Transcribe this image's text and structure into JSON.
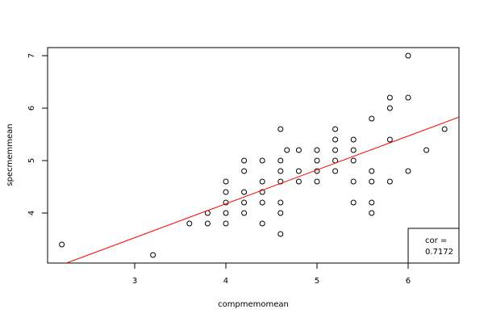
{
  "chart_data": {
    "type": "scatter",
    "x_label": "compmemomean",
    "y_label": "specmemmean",
    "x": [
      2.2,
      3.2,
      3.6,
      3.8,
      3.8,
      4.0,
      4.0,
      4.0,
      4.0,
      4.0,
      4.2,
      4.2,
      4.2,
      4.2,
      4.2,
      4.4,
      4.4,
      4.4,
      4.4,
      4.4,
      4.6,
      4.6,
      4.6,
      4.6,
      4.6,
      4.6,
      4.6,
      4.67,
      4.8,
      4.8,
      4.8,
      5.0,
      5.0,
      5.0,
      5.0,
      5.2,
      5.2,
      5.2,
      5.2,
      5.2,
      5.4,
      5.4,
      5.4,
      5.4,
      5.4,
      5.6,
      5.6,
      5.6,
      5.6,
      5.6,
      5.8,
      5.8,
      5.8,
      5.8,
      6.0,
      6.0,
      6.0,
      6.2,
      6.4
    ],
    "y": [
      3.4,
      3.2,
      3.8,
      3.8,
      4.0,
      3.8,
      4.0,
      4.2,
      4.4,
      4.6,
      4.0,
      4.2,
      4.4,
      4.8,
      5.0,
      3.8,
      4.2,
      4.4,
      4.6,
      5.0,
      3.6,
      4.0,
      4.2,
      4.6,
      4.8,
      5.0,
      5.6,
      5.2,
      4.6,
      4.8,
      5.2,
      4.6,
      4.8,
      5.0,
      5.2,
      4.8,
      5.0,
      5.2,
      5.4,
      5.6,
      4.2,
      4.6,
      5.0,
      5.2,
      5.4,
      4.0,
      4.2,
      4.6,
      4.8,
      5.8,
      4.6,
      5.4,
      6.0,
      6.2,
      4.8,
      6.2,
      7.0,
      5.2,
      5.6
    ],
    "color": "#000000",
    "regression": {
      "intercept": 1.592,
      "slope": 0.646,
      "color": "#ff0000"
    },
    "annotation": [
      "cor =",
      "0.7172"
    ],
    "xlim": [
      2.044,
      6.558
    ],
    "xticks": [
      3,
      4,
      5,
      6
    ],
    "ylim": [
      3.046,
      7.154
    ],
    "yticks": [
      4,
      5,
      6,
      7
    ]
  }
}
